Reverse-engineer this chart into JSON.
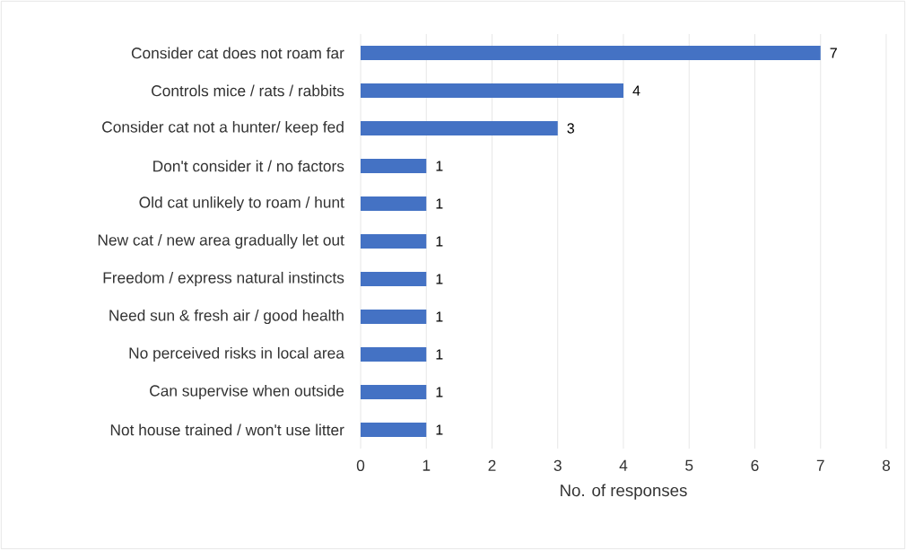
{
  "chart_data": {
    "type": "bar",
    "orientation": "horizontal",
    "xlabel": "No. of responses",
    "categories": [
      "Consider cat does not roam far",
      "Controls mice / rats / rabbits",
      "Consider cat not a hunter/ keep fed",
      "Don't consider it / no factors",
      "Old cat unlikely to roam / hunt",
      "New cat / new area gradually let out",
      "Freedom / express natural instincts",
      "Need sun & fresh air  / good health",
      "No perceived risks in local area",
      "Can supervise when outside",
      "Not house trained / won't use litter"
    ],
    "values": [
      7,
      4,
      3,
      1,
      1,
      1,
      1,
      1,
      1,
      1,
      1
    ],
    "color": "#4472c4",
    "xlim": [
      0,
      8
    ],
    "xticks": [
      0,
      1,
      2,
      3,
      4,
      5,
      6,
      7,
      8
    ],
    "grid": "x",
    "data_labels": true
  }
}
